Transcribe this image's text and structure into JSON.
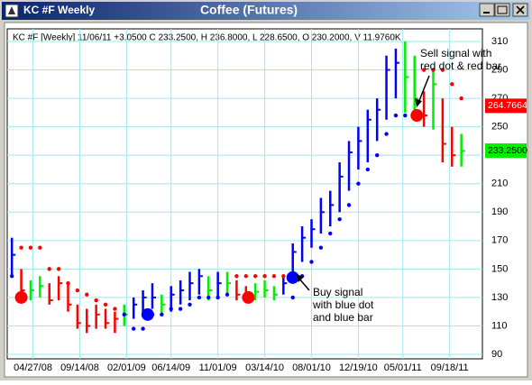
{
  "window_title": "KC #F Weekly",
  "chart_data": {
    "type": "ohlc",
    "title": "Coffee (Futures)",
    "info": "KC #F [Weekly] 11/06/11 +3.0500 C 233.2500, H 236.8000, L 228.6500, O 230.2000, V 11.9760K",
    "xlim": [
      -2,
      201
    ],
    "ylim": [
      90,
      310
    ],
    "yticks": [
      90,
      110,
      130,
      150,
      170,
      190,
      210,
      230,
      250,
      270,
      290,
      310
    ],
    "xticks": [
      {
        "value": 9,
        "label": "04/27/08"
      },
      {
        "value": 29,
        "label": "09/14/08"
      },
      {
        "value": 49,
        "label": "02/01/09"
      },
      {
        "value": 68,
        "label": "06/14/09"
      },
      {
        "value": 88,
        "label": "11/01/09"
      },
      {
        "value": 108,
        "label": "03/14/10"
      },
      {
        "value": 128,
        "label": "08/01/10"
      },
      {
        "value": 148,
        "label": "12/19/10"
      },
      {
        "value": 167,
        "label": "05/01/11"
      },
      {
        "value": 187,
        "label": "09/18/11"
      }
    ],
    "grid": true,
    "bars": {
      "x": [
        0,
        4,
        8,
        12,
        16,
        20,
        24,
        28,
        32,
        36,
        40,
        44,
        48,
        52,
        56,
        60,
        64,
        68,
        72,
        76,
        80,
        84,
        88,
        92,
        96,
        100,
        104,
        108,
        112,
        116,
        120,
        124,
        128,
        132,
        136,
        140,
        144,
        148,
        152,
        156,
        160,
        164,
        168,
        172,
        176,
        180,
        184,
        188,
        192
      ],
      "high": [
        172,
        150,
        142,
        145,
        140,
        145,
        140,
        125,
        122,
        125,
        122,
        120,
        125,
        130,
        135,
        140,
        132,
        138,
        142,
        148,
        150,
        145,
        148,
        148,
        142,
        138,
        140,
        142,
        138,
        145,
        168,
        180,
        185,
        200,
        205,
        225,
        240,
        250,
        262,
        270,
        300,
        305,
        310,
        300,
        275,
        290,
        270,
        250,
        245
      ],
      "low": [
        145,
        128,
        128,
        130,
        125,
        128,
        120,
        108,
        105,
        108,
        108,
        105,
        110,
        115,
        118,
        122,
        118,
        120,
        125,
        128,
        132,
        128,
        130,
        132,
        128,
        126,
        128,
        130,
        128,
        132,
        145,
        155,
        165,
        175,
        180,
        190,
        205,
        220,
        225,
        240,
        255,
        270,
        260,
        255,
        250,
        248,
        225,
        222,
        222
      ],
      "close": [
        160,
        135,
        135,
        138,
        128,
        140,
        125,
        112,
        110,
        118,
        112,
        115,
        118,
        125,
        130,
        130,
        125,
        132,
        135,
        140,
        145,
        135,
        140,
        140,
        132,
        130,
        134,
        135,
        132,
        140,
        162,
        172,
        178,
        190,
        195,
        215,
        232,
        240,
        255,
        262,
        290,
        295,
        285,
        270,
        258,
        280,
        238,
        230,
        233
      ],
      "colors": [
        "#0000ff",
        "#ff0000",
        "#00ee00",
        "#00ee00",
        "#ff0000",
        "#ff0000",
        "#ff0000",
        "#ff0000",
        "#ff0000",
        "#ff0000",
        "#ff0000",
        "#ff0000",
        "#00ee00",
        "#0000ff",
        "#0000ff",
        "#0000ff",
        "#00ee00",
        "#0000ff",
        "#0000ff",
        "#0000ff",
        "#0000ff",
        "#00ee00",
        "#0000ff",
        "#00ee00",
        "#ff0000",
        "#ff0000",
        "#00ee00",
        "#00ee00",
        "#00ee00",
        "#0000ff",
        "#0000ff",
        "#0000ff",
        "#0000ff",
        "#0000ff",
        "#0000ff",
        "#0000ff",
        "#0000ff",
        "#0000ff",
        "#0000ff",
        "#0000ff",
        "#0000ff",
        "#0000ff",
        "#00ee00",
        "#00ee00",
        "#ff0000",
        "#00ee00",
        "#ff0000",
        "#ff0000",
        "#00ee00"
      ]
    },
    "stops": {
      "values": [
        145,
        165,
        165,
        165,
        150,
        150,
        140,
        135,
        132,
        128,
        125,
        122,
        118,
        108,
        108,
        118,
        118,
        122,
        122,
        125,
        130,
        130,
        130,
        132,
        145,
        145,
        145,
        145,
        145,
        145,
        130,
        145,
        155,
        165,
        175,
        185,
        195,
        210,
        220,
        230,
        245,
        258,
        258,
        258,
        290,
        290,
        290,
        280,
        270
      ],
      "colors": [
        "#0000ff",
        "#ff0000",
        "#ff0000",
        "#ff0000",
        "#ff0000",
        "#ff0000",
        "#ff0000",
        "#ff0000",
        "#ff0000",
        "#ff0000",
        "#ff0000",
        "#ff0000",
        "#0000ff",
        "#0000ff",
        "#0000ff",
        "#0000ff",
        "#0000ff",
        "#0000ff",
        "#0000ff",
        "#0000ff",
        "#0000ff",
        "#0000ff",
        "#0000ff",
        "#0000ff",
        "#ff0000",
        "#ff0000",
        "#ff0000",
        "#ff0000",
        "#ff0000",
        "#ff0000",
        "#0000ff",
        "#0000ff",
        "#0000ff",
        "#0000ff",
        "#0000ff",
        "#0000ff",
        "#0000ff",
        "#0000ff",
        "#0000ff",
        "#0000ff",
        "#0000ff",
        "#0000ff",
        "#0000ff",
        "#0000ff",
        "#ff0000",
        "#ff0000",
        "#ff0000",
        "#ff0000",
        "#ff0000"
      ]
    },
    "signals": {
      "x": [
        4,
        58,
        101,
        120,
        173
      ],
      "values": [
        130,
        118,
        130,
        144,
        258
      ],
      "colors": [
        "#ff0000",
        "#0000ff",
        "#ff0000",
        "#0000ff",
        "#ff0000"
      ]
    },
    "price_labels": [
      {
        "value": 264.7664,
        "label": "264.7664",
        "color": "#ff0000"
      },
      {
        "value": 233.25,
        "label": "233.2500",
        "color": "#00ee00"
      }
    ],
    "annotations": [
      {
        "lines": [
          "Sell signal with",
          "red dot & red bar"
        ]
      },
      {
        "lines": [
          "Buy signal",
          "with blue dot",
          "and blue bar"
        ]
      }
    ]
  }
}
